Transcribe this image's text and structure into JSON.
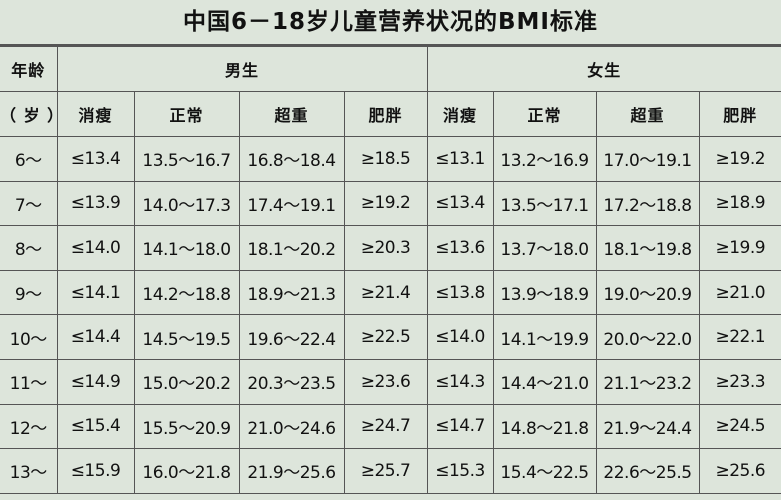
{
  "title": "中国6－18岁儿童营养状况的BMI标准",
  "header": {
    "age_top": "年龄",
    "age_bottom": "（ 岁 ）",
    "male": "男生",
    "female": "女生",
    "categories": [
      "消瘦",
      "正常",
      "超重",
      "肥胖",
      "消瘦",
      "正常",
      "超重",
      "肥胖"
    ]
  },
  "rows": [
    {
      "age": "6～",
      "values": [
        "≤13.4",
        "13.5～16.7",
        "16.8～18.4",
        "≥18.5",
        "≤13.1",
        "13.2～16.9",
        "17.0～19.1",
        "≥19.2"
      ]
    },
    {
      "age": "7～",
      "values": [
        "≤13.9",
        "14.0～17.3",
        "17.4～19.1",
        "≥19.2",
        "≤13.4",
        "13.5～17.1",
        "17.2～18.8",
        "≥18.9"
      ]
    },
    {
      "age": "8～",
      "values": [
        "≤14.0",
        "14.1～18.0",
        "18.1～20.2",
        "≥20.3",
        "≤13.6",
        "13.7～18.0",
        "18.1～19.8",
        "≥19.9"
      ]
    },
    {
      "age": "9～",
      "values": [
        "≤14.1",
        "14.2～18.8",
        "18.9～21.3",
        "≥21.4",
        "≤13.8",
        "13.9～18.9",
        "19.0～20.9",
        "≥21.0"
      ]
    },
    {
      "age": "10～",
      "values": [
        "≤14.4",
        "14.5～19.5",
        "19.6～22.4",
        "≥22.5",
        "≤14.0",
        "14.1～19.9",
        "20.0～22.0",
        "≥22.1"
      ]
    },
    {
      "age": "11～",
      "values": [
        "≤14.9",
        "15.0～20.2",
        "20.3～23.5",
        "≥23.6",
        "≤14.3",
        "14.4～21.0",
        "21.1～23.2",
        "≥23.3"
      ]
    },
    {
      "age": "12～",
      "values": [
        "≤15.4",
        "15.5～20.9",
        "21.0～24.6",
        "≥24.7",
        "≤14.7",
        "14.8～21.8",
        "21.9～24.4",
        "≥24.5"
      ]
    },
    {
      "age": "13～",
      "values": [
        "≤15.9",
        "16.0～21.8",
        "21.9～25.6",
        "≥25.7",
        "≤15.3",
        "15.4～22.5",
        "22.6～25.5",
        "≥25.6"
      ]
    }
  ]
}
